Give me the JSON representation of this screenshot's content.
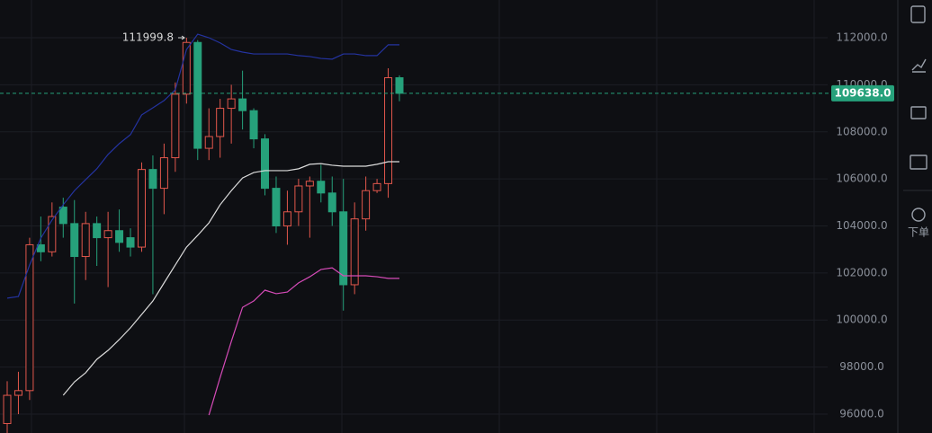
{
  "chart_data": {
    "type": "candlestick",
    "categories": [
      null,
      null,
      null,
      null,
      null,
      null,
      null,
      null,
      null,
      null,
      null,
      null,
      null,
      null,
      null,
      null,
      null,
      null,
      null,
      null,
      null,
      null,
      null,
      null,
      null,
      null,
      null,
      null,
      null,
      null,
      null,
      null,
      null,
      null,
      null,
      null
    ],
    "open": [
      95600,
      96800,
      97000,
      103200,
      102900,
      104800,
      104100,
      102700,
      104100,
      103500,
      103800,
      103500,
      103100,
      106400,
      105600,
      106900,
      109600,
      111800,
      107300,
      107800,
      109000,
      109400,
      108900,
      107700,
      105600,
      104000,
      104600,
      105700,
      105900,
      105400,
      104600,
      101500,
      104300,
      105500,
      105800,
      110300
    ],
    "high": [
      97400,
      97800,
      103500,
      104400,
      105000,
      105200,
      105100,
      104600,
      104400,
      104600,
      104700,
      103900,
      106700,
      107000,
      107500,
      110100,
      112000,
      111900,
      109000,
      109400,
      110000,
      110600,
      109000,
      107900,
      106100,
      105500,
      106000,
      106100,
      106600,
      106100,
      106000,
      105000,
      106100,
      106000,
      110700,
      110400
    ],
    "low": [
      95200,
      96000,
      96600,
      102500,
      102700,
      103500,
      100700,
      101700,
      102300,
      101400,
      102900,
      102700,
      102900,
      101100,
      104500,
      106300,
      109200,
      106800,
      106800,
      106900,
      107500,
      108100,
      107300,
      105300,
      103700,
      103200,
      104000,
      103500,
      105000,
      104000,
      100400,
      101100,
      103800,
      105400,
      105200,
      109300
    ],
    "close": [
      96800,
      97000,
      103200,
      102900,
      104400,
      104100,
      102700,
      104100,
      103500,
      103800,
      103300,
      103100,
      106400,
      105600,
      106900,
      109600,
      111800,
      107300,
      107800,
      109000,
      109400,
      108900,
      107700,
      105600,
      104000,
      104600,
      105700,
      105900,
      105400,
      104600,
      101500,
      104300,
      105500,
      105800,
      110300,
      109638
    ],
    "up_color": "#e2574c",
    "down_color": "#26a17b",
    "indicators": [
      {
        "color": "#2433a0",
        "values": [
          100930,
          101000,
          102340,
          103480,
          104250,
          104900,
          105500,
          105970,
          106430,
          107040,
          107500,
          107880,
          108720,
          109020,
          109330,
          109790,
          111500,
          112150,
          112000,
          111780,
          111500,
          111390,
          111310,
          111310,
          111310,
          111310,
          111240,
          111200,
          111120,
          111090,
          111310,
          111310,
          111240,
          111240,
          111700,
          111700
        ]
      },
      {
        "color": "#dcdcdc",
        "values": [
          null,
          null,
          null,
          null,
          null,
          96800,
          97370,
          97760,
          98330,
          98710,
          99170,
          99670,
          100240,
          100810,
          101580,
          102340,
          103100,
          103600,
          104130,
          104900,
          105500,
          106040,
          106270,
          106350,
          106350,
          106350,
          106430,
          106620,
          106650,
          106580,
          106540,
          106540,
          106540,
          106620,
          106730,
          106730
        ]
      },
      {
        "color": "#d64bb8",
        "values": [
          null,
          null,
          null,
          null,
          null,
          null,
          null,
          null,
          null,
          null,
          null,
          null,
          null,
          null,
          null,
          null,
          null,
          null,
          95960,
          97560,
          99090,
          100540,
          100810,
          101270,
          101120,
          101190,
          101580,
          101840,
          102150,
          102220,
          101880,
          101880,
          101880,
          101840,
          101770,
          101770
        ]
      }
    ],
    "ylim": [
      95198,
      113604
    ],
    "yticks": [
      {
        "value": 96000,
        "label": "96000.0"
      },
      {
        "value": 98000,
        "label": "98000.0"
      },
      {
        "value": 100000,
        "label": "100000.0"
      },
      {
        "value": 102000,
        "label": "102000.0"
      },
      {
        "value": 104000,
        "label": "104000.0"
      },
      {
        "value": 106000,
        "label": "106000.0"
      },
      {
        "value": 108000,
        "label": "108000.0"
      },
      {
        "value": 110000,
        "label": "110000.0"
      },
      {
        "value": 112000,
        "label": "112000.0"
      }
    ],
    "grid": true,
    "max_label": 111999.8,
    "last_price": {
      "value": 109638,
      "label": "109638.0"
    },
    "last_price_color": "#26a17b"
  },
  "toolbar": {
    "order_label": "下单"
  }
}
